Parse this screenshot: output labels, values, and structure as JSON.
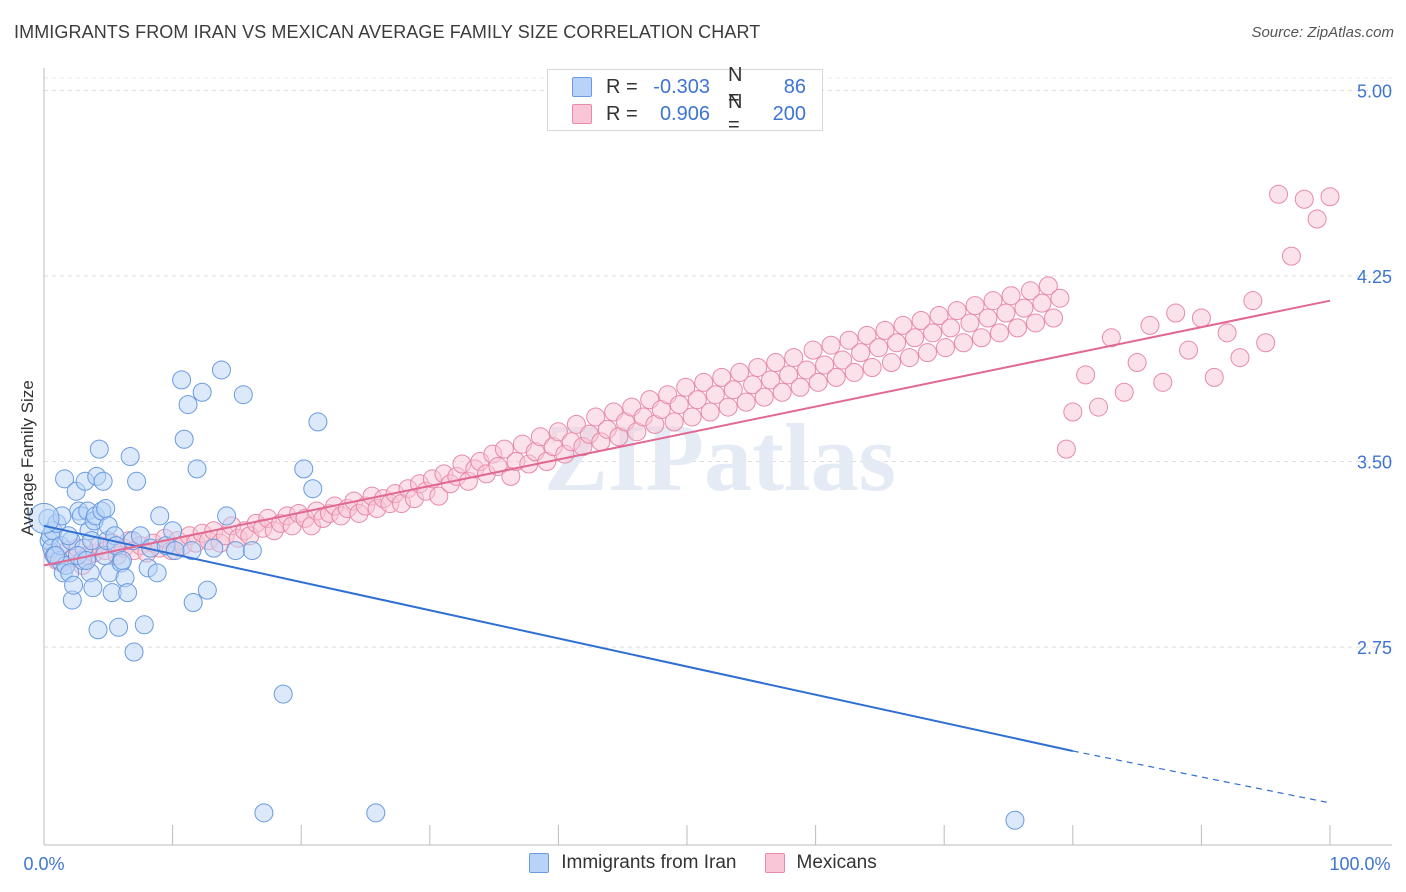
{
  "title": "IMMIGRANTS FROM IRAN VS MEXICAN AVERAGE FAMILY SIZE CORRELATION CHART",
  "source": "Source: ZipAtlas.com",
  "watermark": "ZIPatlas",
  "legend": {
    "rows": [
      {
        "r_label": "R =",
        "r_value": "-0.303",
        "n_label": "N =",
        "n_value": "86",
        "fill": "#b8d3f7",
        "stroke": "#6a9be0"
      },
      {
        "r_label": "R =",
        "r_value": "0.906",
        "n_label": "N =",
        "n_value": "200",
        "fill": "#f8c6d6",
        "stroke": "#e88aa8"
      }
    ]
  },
  "chart_data": {
    "type": "scatter",
    "title": "IMMIGRANTS FROM IRAN VS MEXICAN AVERAGE FAMILY SIZE CORRELATION CHART",
    "xlabel": "",
    "ylabel": "Average Family Size",
    "xlim": [
      0,
      100
    ],
    "ylim": [
      1.95,
      5.05
    ],
    "x_tick_labels": [
      "0.0%",
      "100.0%"
    ],
    "y_ticks": [
      2.75,
      3.5,
      4.25,
      5.0
    ],
    "y_tick_labels": [
      "2.75",
      "3.50",
      "4.25",
      "5.00"
    ],
    "grid": true,
    "series": [
      {
        "name": "Immigrants from Iran",
        "color": "#6a9be0",
        "fill": "#b8d3f7",
        "trend": {
          "x0": 0,
          "y0": 3.24,
          "x1": 80,
          "y1": 2.33,
          "dashed_to_x": 100,
          "dashed_to_y": 2.12,
          "color": "#2f6fd1"
        },
        "points": [
          [
            0.3,
            3.27
          ],
          [
            0.4,
            3.18
          ],
          [
            0.5,
            3.2
          ],
          [
            0.6,
            3.15
          ],
          [
            0.7,
            3.22
          ],
          [
            0.8,
            3.12
          ],
          [
            1.0,
            3.25
          ],
          [
            1.2,
            3.1
          ],
          [
            1.3,
            3.16
          ],
          [
            1.5,
            3.05
          ],
          [
            1.6,
            3.43
          ],
          [
            1.7,
            3.08
          ],
          [
            2.0,
            3.05
          ],
          [
            2.1,
            3.18
          ],
          [
            2.2,
            2.94
          ],
          [
            2.3,
            3.0
          ],
          [
            2.5,
            3.38
          ],
          [
            2.7,
            3.3
          ],
          [
            2.9,
            3.28
          ],
          [
            3.0,
            3.1
          ],
          [
            3.1,
            3.15
          ],
          [
            3.2,
            3.42
          ],
          [
            3.4,
            3.3
          ],
          [
            3.5,
            3.22
          ],
          [
            3.6,
            3.05
          ],
          [
            3.7,
            3.18
          ],
          [
            3.8,
            2.99
          ],
          [
            3.9,
            3.26
          ],
          [
            4.0,
            3.28
          ],
          [
            4.1,
            3.44
          ],
          [
            4.2,
            2.82
          ],
          [
            4.3,
            3.55
          ],
          [
            4.5,
            3.3
          ],
          [
            4.6,
            3.42
          ],
          [
            4.7,
            3.12
          ],
          [
            4.8,
            3.31
          ],
          [
            4.9,
            3.18
          ],
          [
            5.0,
            3.24
          ],
          [
            5.1,
            3.05
          ],
          [
            5.3,
            2.97
          ],
          [
            5.5,
            3.2
          ],
          [
            5.6,
            3.16
          ],
          [
            5.8,
            2.83
          ],
          [
            6.0,
            3.09
          ],
          [
            6.3,
            3.03
          ],
          [
            6.5,
            2.97
          ],
          [
            6.7,
            3.52
          ],
          [
            6.9,
            3.18
          ],
          [
            7.0,
            2.73
          ],
          [
            7.2,
            3.42
          ],
          [
            7.5,
            3.2
          ],
          [
            7.8,
            2.84
          ],
          [
            8.1,
            3.07
          ],
          [
            8.3,
            3.15
          ],
          [
            9.0,
            3.28
          ],
          [
            9.5,
            3.16
          ],
          [
            10.0,
            3.22
          ],
          [
            10.2,
            3.14
          ],
          [
            10.7,
            3.83
          ],
          [
            10.9,
            3.59
          ],
          [
            11.2,
            3.73
          ],
          [
            11.5,
            3.14
          ],
          [
            11.6,
            2.93
          ],
          [
            11.9,
            3.47
          ],
          [
            12.3,
            3.78
          ],
          [
            12.7,
            2.98
          ],
          [
            13.2,
            3.15
          ],
          [
            13.8,
            3.87
          ],
          [
            14.2,
            3.28
          ],
          [
            14.9,
            3.14
          ],
          [
            15.5,
            3.77
          ],
          [
            16.2,
            3.14
          ],
          [
            17.1,
            2.08
          ],
          [
            18.6,
            2.56
          ],
          [
            20.2,
            3.47
          ],
          [
            20.9,
            3.39
          ],
          [
            21.3,
            3.66
          ],
          [
            25.8,
            2.08
          ],
          [
            2.6,
            3.12
          ],
          [
            1.9,
            3.2
          ],
          [
            3.3,
            3.1
          ],
          [
            0.9,
            3.12
          ],
          [
            1.4,
            3.28
          ],
          [
            6.1,
            3.1
          ],
          [
            8.8,
            3.05
          ],
          [
            75.5,
            2.05
          ]
        ]
      },
      {
        "name": "Mexicans",
        "color": "#e88aa8",
        "fill": "#f8c6d6",
        "trend": {
          "x0": 0,
          "y0": 3.08,
          "x1": 100,
          "y1": 4.15,
          "color": "#e06892"
        },
        "points": [
          [
            0.7,
            3.13
          ],
          [
            1.0,
            3.1
          ],
          [
            1.4,
            3.09
          ],
          [
            1.8,
            3.14
          ],
          [
            2.2,
            3.11
          ],
          [
            2.6,
            3.15
          ],
          [
            3.0,
            3.08
          ],
          [
            3.4,
            3.12
          ],
          [
            3.9,
            3.13
          ],
          [
            4.3,
            3.16
          ],
          [
            4.8,
            3.14
          ],
          [
            5.3,
            3.17
          ],
          [
            5.7,
            3.12
          ],
          [
            6.2,
            3.15
          ],
          [
            6.6,
            3.18
          ],
          [
            7.0,
            3.14
          ],
          [
            7.5,
            3.16
          ],
          [
            8.0,
            3.13
          ],
          [
            8.5,
            3.17
          ],
          [
            9.0,
            3.15
          ],
          [
            9.4,
            3.19
          ],
          [
            9.9,
            3.14
          ],
          [
            10.4,
            3.18
          ],
          [
            10.8,
            3.16
          ],
          [
            11.3,
            3.2
          ],
          [
            11.8,
            3.17
          ],
          [
            12.3,
            3.21
          ],
          [
            12.8,
            3.18
          ],
          [
            13.2,
            3.22
          ],
          [
            13.7,
            3.17
          ],
          [
            14.1,
            3.2
          ],
          [
            14.6,
            3.24
          ],
          [
            15.1,
            3.19
          ],
          [
            15.6,
            3.22
          ],
          [
            16.0,
            3.2
          ],
          [
            16.5,
            3.25
          ],
          [
            17.0,
            3.23
          ],
          [
            17.4,
            3.27
          ],
          [
            17.9,
            3.22
          ],
          [
            18.4,
            3.25
          ],
          [
            18.9,
            3.28
          ],
          [
            19.3,
            3.24
          ],
          [
            19.8,
            3.29
          ],
          [
            20.3,
            3.27
          ],
          [
            20.8,
            3.24
          ],
          [
            21.2,
            3.3
          ],
          [
            21.7,
            3.27
          ],
          [
            22.2,
            3.29
          ],
          [
            22.6,
            3.32
          ],
          [
            23.1,
            3.28
          ],
          [
            23.6,
            3.31
          ],
          [
            24.1,
            3.34
          ],
          [
            24.5,
            3.29
          ],
          [
            25.0,
            3.32
          ],
          [
            25.5,
            3.36
          ],
          [
            25.9,
            3.31
          ],
          [
            26.4,
            3.35
          ],
          [
            26.9,
            3.33
          ],
          [
            27.3,
            3.37
          ],
          [
            27.8,
            3.33
          ],
          [
            28.3,
            3.39
          ],
          [
            28.8,
            3.35
          ],
          [
            29.2,
            3.41
          ],
          [
            29.7,
            3.38
          ],
          [
            30.2,
            3.43
          ],
          [
            30.7,
            3.36
          ],
          [
            31.1,
            3.45
          ],
          [
            31.6,
            3.41
          ],
          [
            32.1,
            3.44
          ],
          [
            32.5,
            3.49
          ],
          [
            33.0,
            3.42
          ],
          [
            33.5,
            3.47
          ],
          [
            33.9,
            3.5
          ],
          [
            34.4,
            3.45
          ],
          [
            34.9,
            3.53
          ],
          [
            35.3,
            3.48
          ],
          [
            35.8,
            3.55
          ],
          [
            36.3,
            3.44
          ],
          [
            36.7,
            3.5
          ],
          [
            37.2,
            3.57
          ],
          [
            37.7,
            3.49
          ],
          [
            38.2,
            3.54
          ],
          [
            38.6,
            3.6
          ],
          [
            39.1,
            3.5
          ],
          [
            39.6,
            3.56
          ],
          [
            40.0,
            3.62
          ],
          [
            40.5,
            3.53
          ],
          [
            41.0,
            3.58
          ],
          [
            41.4,
            3.65
          ],
          [
            41.9,
            3.56
          ],
          [
            42.4,
            3.61
          ],
          [
            42.9,
            3.68
          ],
          [
            43.3,
            3.58
          ],
          [
            43.8,
            3.63
          ],
          [
            44.3,
            3.7
          ],
          [
            44.7,
            3.6
          ],
          [
            45.2,
            3.66
          ],
          [
            45.7,
            3.72
          ],
          [
            46.1,
            3.62
          ],
          [
            46.6,
            3.68
          ],
          [
            47.1,
            3.75
          ],
          [
            47.5,
            3.65
          ],
          [
            48.0,
            3.71
          ],
          [
            48.5,
            3.77
          ],
          [
            49.0,
            3.66
          ],
          [
            49.4,
            3.73
          ],
          [
            49.9,
            3.8
          ],
          [
            50.4,
            3.68
          ],
          [
            50.8,
            3.75
          ],
          [
            51.3,
            3.82
          ],
          [
            51.8,
            3.7
          ],
          [
            52.2,
            3.77
          ],
          [
            52.7,
            3.84
          ],
          [
            53.2,
            3.72
          ],
          [
            53.6,
            3.79
          ],
          [
            54.1,
            3.86
          ],
          [
            54.6,
            3.74
          ],
          [
            55.1,
            3.81
          ],
          [
            55.5,
            3.88
          ],
          [
            56.0,
            3.76
          ],
          [
            56.5,
            3.83
          ],
          [
            56.9,
            3.9
          ],
          [
            57.4,
            3.78
          ],
          [
            57.9,
            3.85
          ],
          [
            58.3,
            3.92
          ],
          [
            58.8,
            3.8
          ],
          [
            59.3,
            3.87
          ],
          [
            59.8,
            3.95
          ],
          [
            60.2,
            3.82
          ],
          [
            60.7,
            3.89
          ],
          [
            61.2,
            3.97
          ],
          [
            61.6,
            3.84
          ],
          [
            62.1,
            3.91
          ],
          [
            62.6,
            3.99
          ],
          [
            63.0,
            3.86
          ],
          [
            63.5,
            3.94
          ],
          [
            64.0,
            4.01
          ],
          [
            64.4,
            3.88
          ],
          [
            64.9,
            3.96
          ],
          [
            65.4,
            4.03
          ],
          [
            65.9,
            3.9
          ],
          [
            66.3,
            3.98
          ],
          [
            66.8,
            4.05
          ],
          [
            67.3,
            3.92
          ],
          [
            67.7,
            4.0
          ],
          [
            68.2,
            4.07
          ],
          [
            68.7,
            3.94
          ],
          [
            69.1,
            4.02
          ],
          [
            69.6,
            4.09
          ],
          [
            70.1,
            3.96
          ],
          [
            70.5,
            4.04
          ],
          [
            71.0,
            4.11
          ],
          [
            71.5,
            3.98
          ],
          [
            72.0,
            4.06
          ],
          [
            72.4,
            4.13
          ],
          [
            72.9,
            4.0
          ],
          [
            73.4,
            4.08
          ],
          [
            73.8,
            4.15
          ],
          [
            74.3,
            4.02
          ],
          [
            74.8,
            4.1
          ],
          [
            75.2,
            4.17
          ],
          [
            75.7,
            4.04
          ],
          [
            76.2,
            4.12
          ],
          [
            76.7,
            4.19
          ],
          [
            77.1,
            4.06
          ],
          [
            77.6,
            4.14
          ],
          [
            78.1,
            4.21
          ],
          [
            78.5,
            4.08
          ],
          [
            79.0,
            4.16
          ],
          [
            79.5,
            3.55
          ],
          [
            80.0,
            3.7
          ],
          [
            81.0,
            3.85
          ],
          [
            82.0,
            3.72
          ],
          [
            83.0,
            4.0
          ],
          [
            84.0,
            3.78
          ],
          [
            85.0,
            3.9
          ],
          [
            86.0,
            4.05
          ],
          [
            87.0,
            3.82
          ],
          [
            88.0,
            4.1
          ],
          [
            89.0,
            3.95
          ],
          [
            90.0,
            4.08
          ],
          [
            91.0,
            3.84
          ],
          [
            92.0,
            4.02
          ],
          [
            93.0,
            3.92
          ],
          [
            94.0,
            4.15
          ],
          [
            95.0,
            3.98
          ],
          [
            96.0,
            4.58
          ],
          [
            97.0,
            4.33
          ],
          [
            98.0,
            4.56
          ],
          [
            99.0,
            4.48
          ],
          [
            100.0,
            4.57
          ]
        ]
      }
    ]
  },
  "bottom_legend": [
    "Immigrants from Iran",
    "Mexicans"
  ]
}
